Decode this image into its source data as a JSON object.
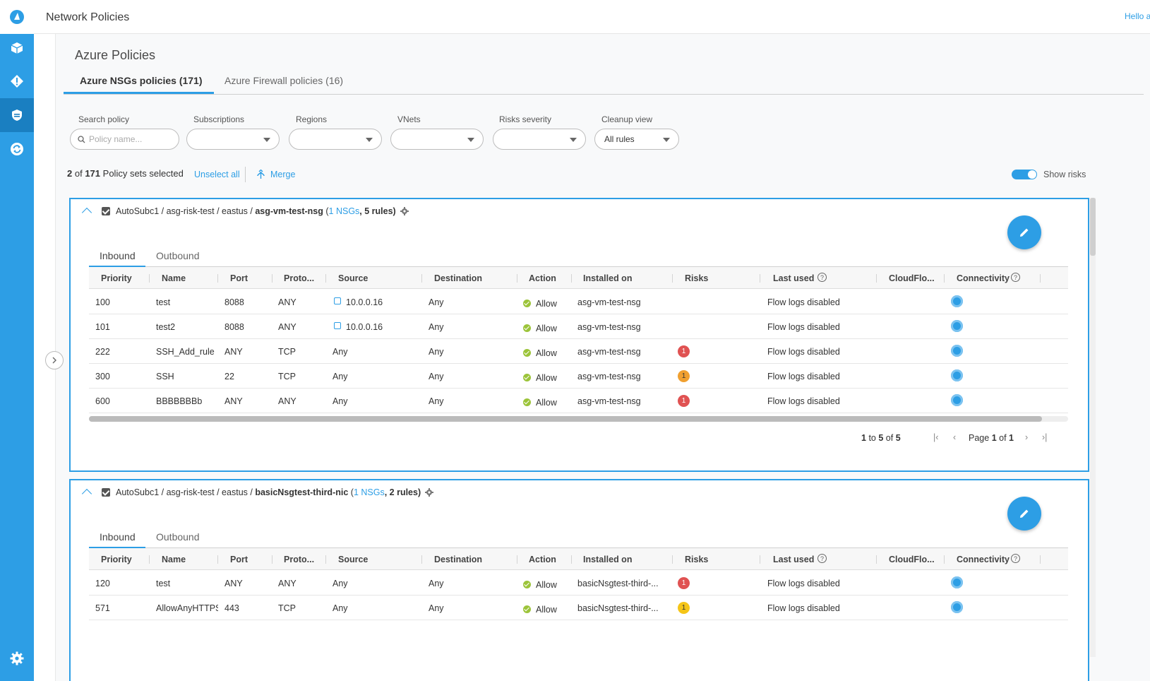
{
  "header": {
    "title": "Network Policies",
    "greeting": "Hello a"
  },
  "rail": {
    "items": [
      "logo-icon",
      "cube-icon",
      "alert-diamond-icon",
      "shield-icon",
      "sync-icon",
      "settings-icon"
    ]
  },
  "main": {
    "section_title": "Azure Policies",
    "tabs": [
      {
        "label": "Azure NSGs policies (171)",
        "active": true
      },
      {
        "label": "Azure Firewall policies (16)",
        "active": false
      }
    ],
    "filters": {
      "search": {
        "label": "Search policy",
        "placeholder": "Policy name..."
      },
      "subscriptions": {
        "label": "Subscriptions",
        "value": ""
      },
      "regions": {
        "label": "Regions",
        "value": ""
      },
      "vnets": {
        "label": "VNets",
        "value": ""
      },
      "risks": {
        "label": "Risks severity",
        "value": ""
      },
      "cleanup": {
        "label": "Cleanup view",
        "value": "All rules"
      }
    },
    "selection": {
      "count_selected": "2",
      "of_text": "of",
      "count_total": "171",
      "suffix": "Policy sets selected",
      "unselect": "Unselect all",
      "merge": "Merge",
      "show_risks": "Show risks"
    }
  },
  "columns": [
    "Priority",
    "Name",
    "Port",
    "Proto...",
    "Source",
    "Destination",
    "Action",
    "Installed on",
    "Risks",
    "Last used",
    "CloudFlo...",
    "Connectivity"
  ],
  "cards": [
    {
      "path": "AutoSubc1 / asg-risk-test / eastus /",
      "nsg": "asg-vm-test-nsg",
      "paren_open": "(",
      "nsg_count": "1 NSGs",
      "rules": ", 5 rules)",
      "subtabs": [
        "Inbound",
        "Outbound"
      ],
      "rows": [
        {
          "priority": "100",
          "name": "test",
          "port": "8088",
          "proto": "ANY",
          "source": "10.0.0.16",
          "source_icon": true,
          "dest": "Any",
          "action": "Allow",
          "installed": "asg-vm-test-nsg",
          "risk": "",
          "risk_color": "",
          "last_used": "Flow logs disabled"
        },
        {
          "priority": "101",
          "name": "test2",
          "port": "8088",
          "proto": "ANY",
          "source": "10.0.0.16",
          "source_icon": true,
          "dest": "Any",
          "action": "Allow",
          "installed": "asg-vm-test-nsg",
          "risk": "",
          "risk_color": "",
          "last_used": "Flow logs disabled"
        },
        {
          "priority": "222",
          "name": "SSH_Add_rule",
          "port": "ANY",
          "proto": "TCP",
          "source": "Any",
          "source_icon": false,
          "dest": "Any",
          "action": "Allow",
          "installed": "asg-vm-test-nsg",
          "risk": "1",
          "risk_color": "#e05252",
          "last_used": "Flow logs disabled"
        },
        {
          "priority": "300",
          "name": "SSH",
          "port": "22",
          "proto": "TCP",
          "source": "Any",
          "source_icon": false,
          "dest": "Any",
          "action": "Allow",
          "installed": "asg-vm-test-nsg",
          "risk": "1",
          "risk_color": "#f0a030",
          "last_used": "Flow logs disabled"
        },
        {
          "priority": "600",
          "name": "BBBBBBBb",
          "port": "ANY",
          "proto": "ANY",
          "source": "Any",
          "source_icon": false,
          "dest": "Any",
          "action": "Allow",
          "installed": "asg-vm-test-nsg",
          "risk": "1",
          "risk_color": "#e05252",
          "last_used": "Flow logs disabled"
        }
      ],
      "pager": {
        "from": "1",
        "to_word": "to",
        "to": "5",
        "of_word": "of",
        "total": "5",
        "page_word": "Page",
        "page": "1",
        "page_of": "of",
        "pages": "1"
      }
    },
    {
      "path": "AutoSubc1 / asg-risk-test / eastus /",
      "nsg": "basicNsgtest-third-nic",
      "paren_open": "(",
      "nsg_count": "1 NSGs",
      "rules": ", 2 rules)",
      "subtabs": [
        "Inbound",
        "Outbound"
      ],
      "rows": [
        {
          "priority": "120",
          "name": "test",
          "port": "ANY",
          "proto": "ANY",
          "source": "Any",
          "source_icon": false,
          "dest": "Any",
          "action": "Allow",
          "installed": "basicNsgtest-third-...",
          "risk": "1",
          "risk_color": "#e05252",
          "last_used": "Flow logs disabled"
        },
        {
          "priority": "571",
          "name": "AllowAnyHTTPS",
          "port": "443",
          "proto": "TCP",
          "source": "Any",
          "source_icon": false,
          "dest": "Any",
          "action": "Allow",
          "installed": "basicNsgtest-third-...",
          "risk": "1",
          "risk_color": "#f5c518",
          "last_used": "Flow logs disabled"
        }
      ]
    }
  ],
  "colors": {
    "accent": "#2d9ee5",
    "rail": "#2d9ee5",
    "rail_active": "#1a7fc1",
    "ok": "#9cc43a"
  }
}
